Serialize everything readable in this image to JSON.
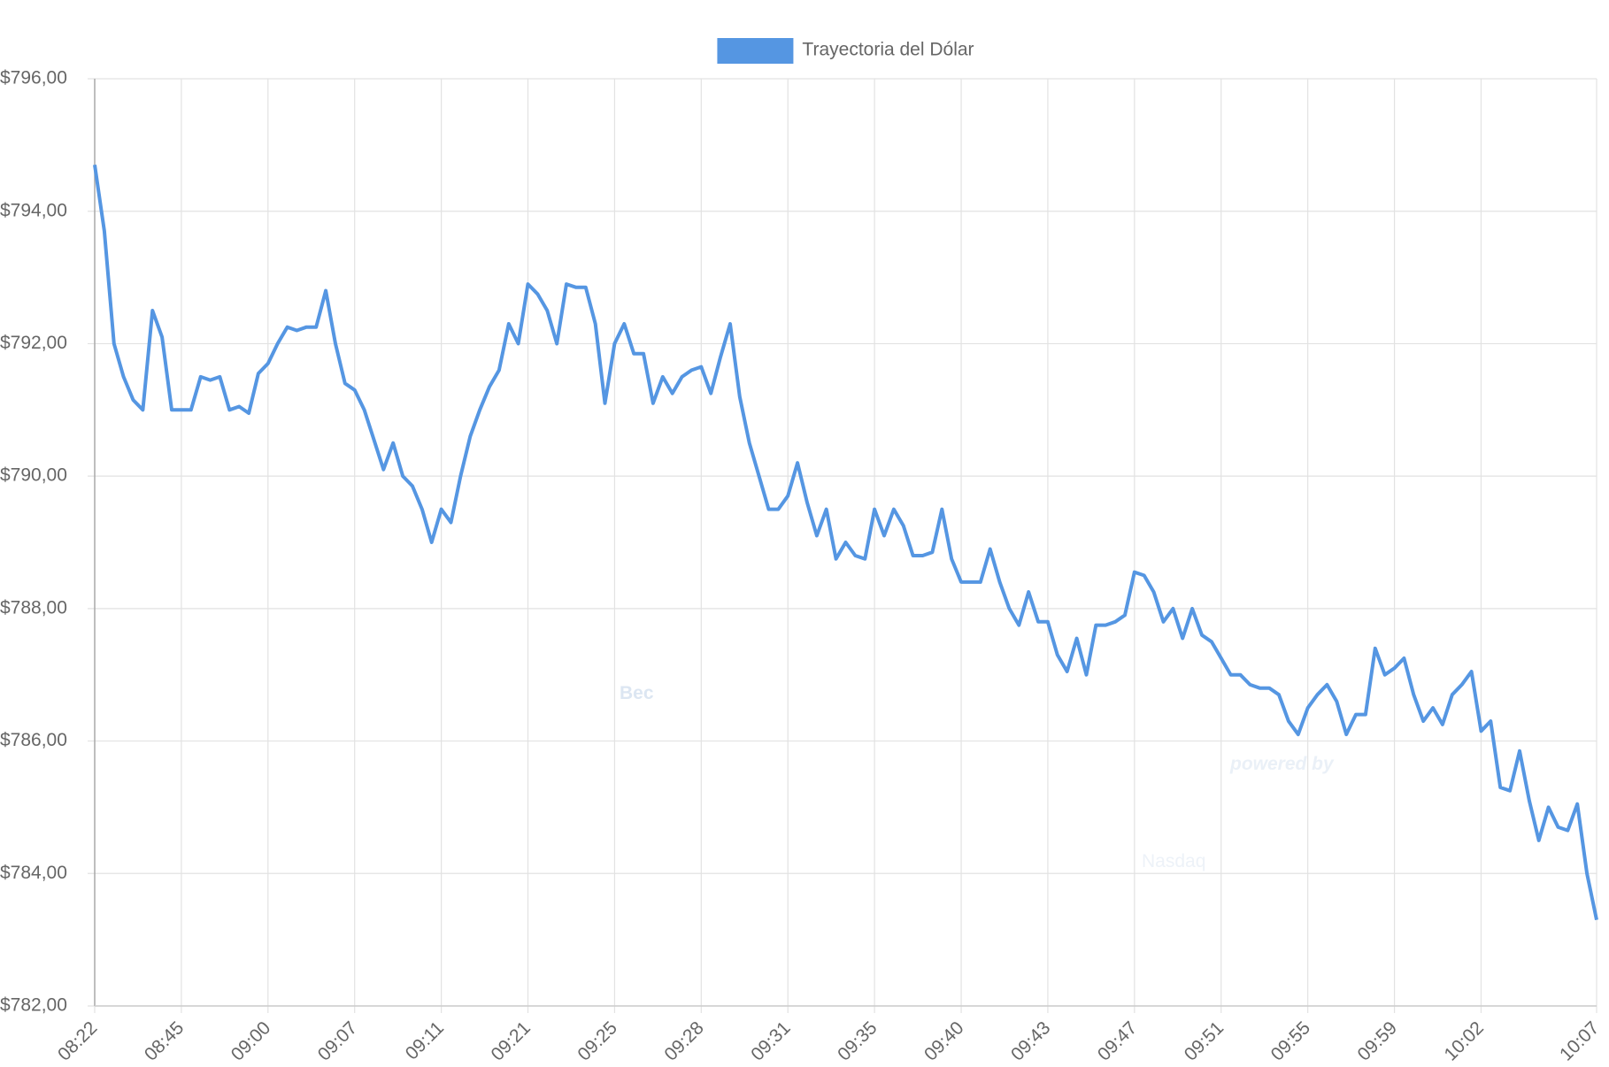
{
  "chart_data": {
    "type": "line",
    "legend": "top",
    "grid": true,
    "watermark": [
      "Bec",
      "powered by",
      "Nasdaq"
    ],
    "categories": [
      "08:22",
      null,
      null,
      null,
      null,
      null,
      null,
      null,
      null,
      "08:45",
      null,
      null,
      null,
      null,
      null,
      null,
      null,
      null,
      "09:00",
      null,
      null,
      null,
      null,
      null,
      null,
      null,
      null,
      "09:07",
      null,
      null,
      null,
      null,
      null,
      null,
      null,
      null,
      "09:11",
      null,
      null,
      null,
      null,
      null,
      null,
      null,
      null,
      "09:21",
      null,
      null,
      null,
      null,
      null,
      null,
      null,
      null,
      "09:25",
      null,
      null,
      null,
      null,
      null,
      null,
      null,
      null,
      "09:28",
      null,
      null,
      null,
      null,
      null,
      null,
      null,
      null,
      "09:31",
      null,
      null,
      null,
      null,
      null,
      null,
      null,
      null,
      "09:35",
      null,
      null,
      null,
      null,
      null,
      null,
      null,
      null,
      "09:40",
      null,
      null,
      null,
      null,
      null,
      null,
      null,
      null,
      "09:43",
      null,
      null,
      null,
      null,
      null,
      null,
      null,
      null,
      "09:47",
      null,
      null,
      null,
      null,
      null,
      null,
      null,
      null,
      "09:51",
      null,
      null,
      null,
      null,
      null,
      null,
      null,
      null,
      "09:55",
      null,
      null,
      null,
      null,
      null,
      null,
      null,
      null,
      "09:59",
      null,
      null,
      null,
      null,
      null,
      null,
      null,
      null,
      "10:02",
      null,
      null,
      null,
      null,
      null,
      null,
      null,
      null,
      null,
      null,
      null,
      "10:07"
    ],
    "series": [
      {
        "name": "Trayectoria del Dólar",
        "color": "#5596e2",
        "values": [
          794.7,
          793.7,
          792.0,
          791.5,
          791.15,
          791.0,
          792.5,
          792.1,
          791.0,
          791.0,
          791.0,
          791.5,
          791.45,
          791.5,
          791.0,
          791.05,
          790.95,
          791.55,
          791.7,
          792.0,
          792.25,
          792.2,
          792.25,
          792.25,
          792.8,
          792.0,
          791.4,
          791.3,
          791.0,
          790.55,
          790.1,
          790.5,
          790.0,
          789.85,
          789.5,
          789.0,
          789.5,
          789.3,
          790.0,
          790.6,
          791.0,
          791.35,
          791.6,
          792.3,
          792.0,
          792.9,
          792.75,
          792.5,
          792.0,
          792.9,
          792.85,
          792.85,
          792.3,
          791.1,
          792.0,
          792.3,
          791.85,
          791.85,
          791.1,
          791.5,
          791.25,
          791.5,
          791.6,
          791.65,
          791.25,
          791.8,
          792.3,
          791.2,
          790.5,
          790.0,
          789.5,
          789.5,
          789.7,
          790.2,
          789.6,
          789.1,
          789.5,
          788.75,
          789.0,
          788.8,
          788.75,
          789.5,
          789.1,
          789.5,
          789.25,
          788.8,
          788.8,
          788.85,
          789.5,
          788.75,
          788.4,
          788.4,
          788.4,
          788.9,
          788.4,
          788.0,
          787.75,
          788.25,
          787.8,
          787.8,
          787.3,
          787.05,
          787.55,
          787.0,
          787.75,
          787.75,
          787.8,
          787.9,
          788.55,
          788.5,
          788.25,
          787.8,
          788.0,
          787.55,
          788.0,
          787.6,
          787.5,
          787.25,
          787.0,
          787.0,
          786.85,
          786.8,
          786.8,
          786.7,
          786.3,
          786.1,
          786.5,
          786.7,
          786.85,
          786.6,
          786.1,
          786.4,
          786.4,
          787.4,
          787.0,
          787.1,
          787.25,
          786.7,
          786.3,
          786.5,
          786.25,
          786.7,
          786.85,
          787.05,
          786.15,
          786.3,
          785.3,
          785.25,
          785.85,
          785.1,
          784.5,
          785.0,
          784.7,
          784.65,
          785.05,
          784.0,
          783.3
        ]
      }
    ],
    "ylim": [
      782,
      796
    ],
    "yticks": [
      {
        "value": 782,
        "label": "$782,00"
      },
      {
        "value": 784,
        "label": "$784,00"
      },
      {
        "value": 786,
        "label": "$786,00"
      },
      {
        "value": 788,
        "label": "$788,00"
      },
      {
        "value": 790,
        "label": "$790,00"
      },
      {
        "value": 792,
        "label": "$792,00"
      },
      {
        "value": 794,
        "label": "$794,00"
      },
      {
        "value": 796,
        "label": "$796,00"
      }
    ]
  }
}
